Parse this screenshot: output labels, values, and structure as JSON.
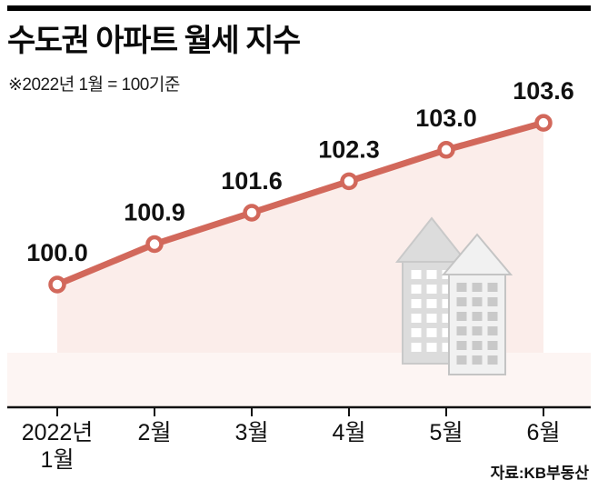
{
  "header": {
    "title": "수도권 아파트 월세 지수",
    "subtitle": "※2022년 1월 = 100기준"
  },
  "source": "자료:KB부동산",
  "chart_data": {
    "type": "line",
    "title": "수도권 아파트 월세 지수",
    "subtitle_note": "2022년 1월 = 100기준",
    "xlabel": "",
    "ylabel": "",
    "categories": [
      "2022년|1월",
      "2월",
      "3월",
      "4월",
      "5월",
      "6월"
    ],
    "values": [
      100.0,
      100.9,
      101.6,
      102.3,
      103.0,
      103.6
    ],
    "point_labels": [
      "100.0",
      "100.9",
      "101.6",
      "102.3",
      "103.0",
      "103.6"
    ],
    "ylim": [
      99.5,
      104.2
    ],
    "grid": false,
    "legend_position": "none",
    "line_color": "#d2685b",
    "marker_fill": "#ffffff",
    "area_fill": "#fbedea",
    "band_fill": "#fdf5f3",
    "axis_color": "#111111",
    "label_color": "#111111",
    "icon": "apartment-buildings-icon"
  }
}
